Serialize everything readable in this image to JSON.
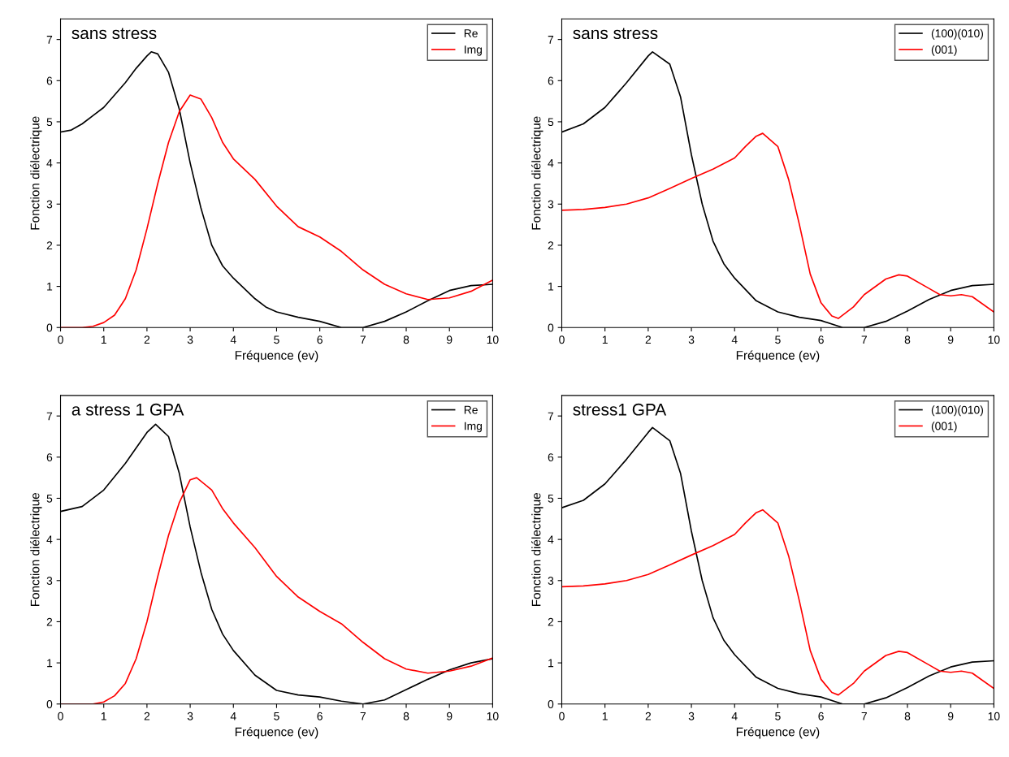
{
  "chart_data": [
    {
      "type": "line",
      "title": "sans stress",
      "xlabel": "Fréquence (ev)",
      "ylabel": "Fonction diélectrique",
      "xlim": [
        0,
        10
      ],
      "ylim": [
        0,
        7.5
      ],
      "xticks": [
        0,
        1,
        2,
        3,
        4,
        5,
        6,
        7,
        8,
        9,
        10
      ],
      "yticks": [
        0,
        1,
        2,
        3,
        4,
        5,
        6,
        7
      ],
      "legend": "top right",
      "grid": false,
      "series": [
        {
          "name": "Re",
          "color": "#000000",
          "x": [
            0,
            0.25,
            0.5,
            0.75,
            1,
            1.25,
            1.5,
            1.75,
            2,
            2.1,
            2.25,
            2.5,
            2.75,
            3,
            3.25,
            3.5,
            3.75,
            4,
            4.25,
            4.5,
            4.75,
            5,
            5.5,
            6,
            6.5,
            7,
            7.5,
            8,
            8.5,
            9,
            9.5,
            10
          ],
          "values": [
            4.75,
            4.8,
            4.95,
            5.15,
            5.35,
            5.65,
            5.95,
            6.3,
            6.6,
            6.7,
            6.65,
            6.2,
            5.3,
            4.0,
            2.9,
            2.0,
            1.5,
            1.2,
            0.95,
            0.7,
            0.5,
            0.38,
            0.25,
            0.15,
            0,
            0,
            0.15,
            0.38,
            0.65,
            0.9,
            1.02,
            1.05
          ]
        },
        {
          "name": "Img",
          "color": "#ff0000",
          "x": [
            0,
            0.5,
            0.75,
            1,
            1.25,
            1.5,
            1.75,
            2,
            2.25,
            2.5,
            2.75,
            3,
            3.25,
            3.5,
            3.75,
            4,
            4.5,
            5,
            5.5,
            6,
            6.5,
            7,
            7.5,
            8,
            8.5,
            9,
            9.5,
            10
          ],
          "values": [
            0,
            0,
            0.03,
            0.12,
            0.3,
            0.7,
            1.4,
            2.4,
            3.5,
            4.5,
            5.25,
            5.65,
            5.55,
            5.1,
            4.5,
            4.1,
            3.6,
            2.95,
            2.45,
            2.2,
            1.85,
            1.4,
            1.05,
            0.82,
            0.68,
            0.72,
            0.88,
            1.15
          ]
        }
      ]
    },
    {
      "type": "line",
      "title": "sans stress",
      "xlabel": "Fréquence (ev)",
      "ylabel": "Fonction diélectrique",
      "xlim": [
        0,
        10
      ],
      "ylim": [
        0,
        7.5
      ],
      "xticks": [
        0,
        1,
        2,
        3,
        4,
        5,
        6,
        7,
        8,
        9,
        10
      ],
      "yticks": [
        0,
        1,
        2,
        3,
        4,
        5,
        6,
        7
      ],
      "legend": "top right",
      "grid": false,
      "series": [
        {
          "name": "(100)(010)",
          "color": "#000000",
          "x": [
            0,
            0.5,
            1,
            1.5,
            2,
            2.1,
            2.5,
            2.75,
            3,
            3.25,
            3.5,
            3.75,
            4,
            4.5,
            5,
            5.5,
            6,
            6.5,
            7,
            7.5,
            8,
            8.5,
            9,
            9.5,
            10
          ],
          "values": [
            4.75,
            4.95,
            5.35,
            5.95,
            6.6,
            6.7,
            6.4,
            5.6,
            4.2,
            3.0,
            2.1,
            1.55,
            1.2,
            0.65,
            0.38,
            0.25,
            0.17,
            0,
            0,
            0.15,
            0.4,
            0.68,
            0.9,
            1.02,
            1.05
          ]
        },
        {
          "name": "(001)",
          "color": "#ff0000",
          "x": [
            0,
            0.5,
            1,
            1.5,
            2,
            2.5,
            3,
            3.5,
            4,
            4.25,
            4.5,
            4.65,
            5,
            5.25,
            5.5,
            5.75,
            6,
            6.25,
            6.4,
            6.75,
            7,
            7.5,
            7.8,
            8,
            8.5,
            8.75,
            9,
            9.25,
            9.5,
            10
          ],
          "values": [
            2.85,
            2.87,
            2.92,
            3.0,
            3.15,
            3.38,
            3.62,
            3.85,
            4.12,
            4.4,
            4.65,
            4.72,
            4.4,
            3.6,
            2.5,
            1.3,
            0.6,
            0.28,
            0.22,
            0.5,
            0.8,
            1.18,
            1.28,
            1.25,
            0.95,
            0.8,
            0.77,
            0.8,
            0.75,
            0.38
          ]
        }
      ]
    },
    {
      "type": "line",
      "title": "a stress 1 GPA",
      "xlabel": "Fréquence (ev)",
      "ylabel": "Fonction diélectrique",
      "xlim": [
        0,
        10
      ],
      "ylim": [
        0,
        7.5
      ],
      "xticks": [
        0,
        1,
        2,
        3,
        4,
        5,
        6,
        7,
        8,
        9,
        10
      ],
      "yticks": [
        0,
        1,
        2,
        3,
        4,
        5,
        6,
        7
      ],
      "legend": "top right",
      "grid": false,
      "series": [
        {
          "name": "Re",
          "color": "#000000",
          "x": [
            0,
            0.5,
            1,
            1.5,
            2,
            2.2,
            2.5,
            2.75,
            3,
            3.25,
            3.5,
            3.75,
            4,
            4.5,
            5,
            5.5,
            6,
            6.5,
            7,
            7.5,
            8,
            8.5,
            9,
            9.5,
            10
          ],
          "values": [
            4.68,
            4.8,
            5.2,
            5.85,
            6.6,
            6.8,
            6.5,
            5.6,
            4.3,
            3.2,
            2.3,
            1.7,
            1.3,
            0.7,
            0.33,
            0.22,
            0.17,
            0.07,
            0,
            0.1,
            0.35,
            0.6,
            0.83,
            1.0,
            1.1
          ]
        },
        {
          "name": "Img",
          "color": "#ff0000",
          "x": [
            0,
            0.75,
            1,
            1.25,
            1.5,
            1.75,
            2,
            2.25,
            2.5,
            2.75,
            3,
            3.15,
            3.5,
            3.75,
            4,
            4.5,
            5,
            5.5,
            6,
            6.5,
            7,
            7.5,
            8,
            8.5,
            9,
            9.5,
            10
          ],
          "values": [
            0,
            0,
            0.05,
            0.2,
            0.5,
            1.1,
            2.0,
            3.1,
            4.1,
            4.9,
            5.45,
            5.5,
            5.2,
            4.75,
            4.4,
            3.8,
            3.1,
            2.6,
            2.25,
            1.95,
            1.5,
            1.1,
            0.85,
            0.75,
            0.8,
            0.92,
            1.12
          ]
        }
      ]
    },
    {
      "type": "line",
      "title": "stress1 GPA",
      "xlabel": "Fréquence (ev)",
      "ylabel": "Fonction diélectrique",
      "xlim": [
        0,
        10
      ],
      "ylim": [
        0,
        7.5
      ],
      "xticks": [
        0,
        1,
        2,
        3,
        4,
        5,
        6,
        7,
        8,
        9,
        10
      ],
      "yticks": [
        0,
        1,
        2,
        3,
        4,
        5,
        6,
        7
      ],
      "legend": "top right",
      "grid": false,
      "series": [
        {
          "name": "(100)(010)",
          "color": "#000000",
          "x": [
            0,
            0.5,
            1,
            1.5,
            2,
            2.1,
            2.5,
            2.75,
            3,
            3.25,
            3.5,
            3.75,
            4,
            4.5,
            5,
            5.5,
            6,
            6.5,
            7,
            7.5,
            8,
            8.5,
            9,
            9.5,
            10
          ],
          "values": [
            4.77,
            4.95,
            5.35,
            5.95,
            6.6,
            6.72,
            6.4,
            5.6,
            4.2,
            3.0,
            2.1,
            1.55,
            1.2,
            0.65,
            0.38,
            0.25,
            0.17,
            0,
            0,
            0.15,
            0.4,
            0.68,
            0.9,
            1.02,
            1.05
          ]
        },
        {
          "name": "(001)",
          "color": "#ff0000",
          "x": [
            0,
            0.5,
            1,
            1.5,
            2,
            2.5,
            3,
            3.5,
            4,
            4.25,
            4.5,
            4.65,
            5,
            5.25,
            5.5,
            5.75,
            6,
            6.25,
            6.4,
            6.75,
            7,
            7.5,
            7.8,
            8,
            8.5,
            8.75,
            9,
            9.25,
            9.5,
            10
          ],
          "values": [
            2.85,
            2.87,
            2.92,
            3.0,
            3.15,
            3.38,
            3.62,
            3.85,
            4.12,
            4.4,
            4.65,
            4.72,
            4.4,
            3.6,
            2.5,
            1.3,
            0.6,
            0.28,
            0.22,
            0.5,
            0.8,
            1.18,
            1.28,
            1.25,
            0.95,
            0.8,
            0.77,
            0.8,
            0.75,
            0.38
          ]
        }
      ]
    }
  ]
}
